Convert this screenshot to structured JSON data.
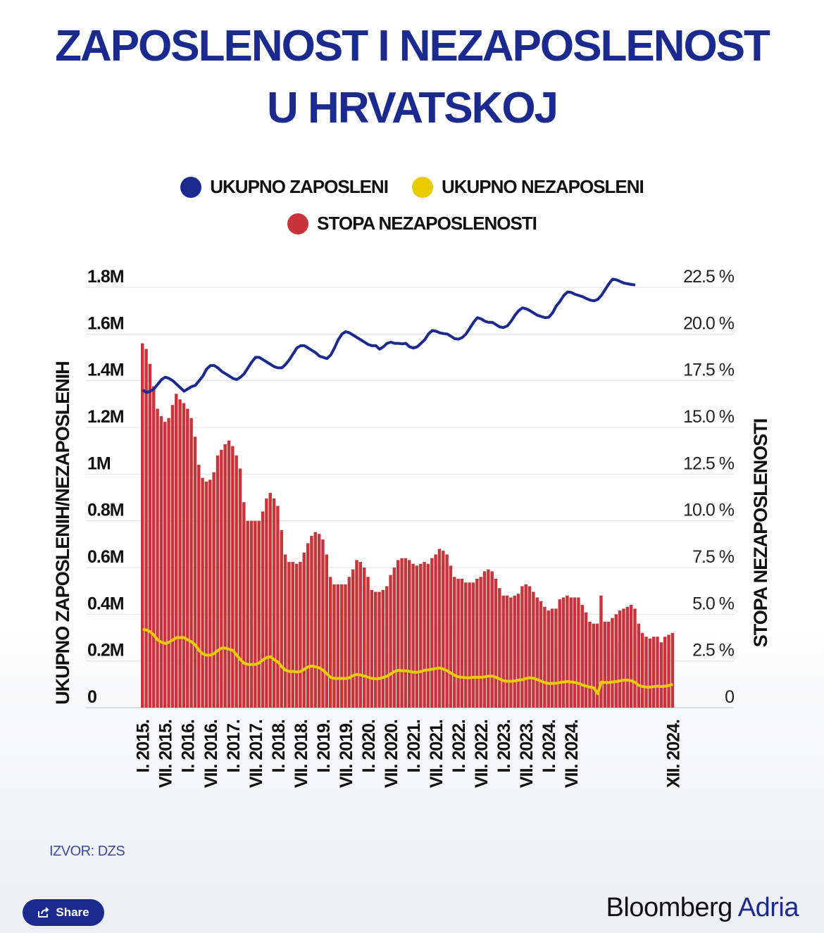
{
  "title": {
    "line1": "ZAPOSLENOST I NEZAPOSLENOST",
    "line2": "U HRVATSKOJ"
  },
  "legend": [
    {
      "label": "UKUPNO ZAPOSLENI",
      "color": "#1a2a8f"
    },
    {
      "label": "UKUPNO NEZAPOSLENI",
      "color": "#e8cc00"
    },
    {
      "label": "STOPA NEZAPOSLENOSTI",
      "color": "#c9343a"
    }
  ],
  "source": "IZVOR: DZS",
  "share_label": "Share",
  "brand": {
    "part1": "Bloomberg",
    "part2": "Adria"
  },
  "chart_data": {
    "type": "bar+line",
    "ylabel_left": "UKUPNO ZAPOSLENIH/NEZAPOSLENIH",
    "ylabel_right": "STOPA NEZAPOSLENOSTI",
    "left_ticks": [
      "0",
      "0.2M",
      "0.4M",
      "0.6M",
      "0.8M",
      "1M",
      "1.2M",
      "1.4M",
      "1.6M",
      "1.8M"
    ],
    "right_ticks": [
      "0",
      "2.5 %",
      "5.0 %",
      "7.5 %",
      "10.0 %",
      "12.5 %",
      "15.0 %",
      "17.5 %",
      "20.0 %",
      "22.5 %"
    ],
    "ylim_left": [
      0,
      1800000
    ],
    "ylim_right": [
      0,
      22.5
    ],
    "x_tick_labels": [
      "I. 2015.",
      "VII. 2015.",
      "I. 2016.",
      "VII. 2016.",
      "I. 2017.",
      "VII. 2017.",
      "I. 2018.",
      "VII. 2018.",
      "I. 2019.",
      "VII. 2019.",
      "I. 2020.",
      "VII. 2020.",
      "I. 2021.",
      "VII. 2021.",
      "I. 2022.",
      "VII. 2022.",
      "I. 2023.",
      "VII. 2023.",
      "I. 2024.",
      "VII. 2024.",
      "XII. 2024."
    ],
    "period_start": "I. 2015.",
    "period_end": "XII. 2024.",
    "series": [
      {
        "name": "STOPA NEZAPOSLENOSTI",
        "kind": "bar",
        "axis": "right",
        "unit": "%",
        "values": [
          19.5,
          19.2,
          18.4,
          17.2,
          16.0,
          15.6,
          15.3,
          15.5,
          16.2,
          16.8,
          16.5,
          16.3,
          16.0,
          15.5,
          14.5,
          13.0,
          12.3,
          12.1,
          12.2,
          12.6,
          13.5,
          13.8,
          14.1,
          14.3,
          14.0,
          13.5,
          12.8,
          11.0,
          10.0,
          10.0,
          10.0,
          10.0,
          10.5,
          11.2,
          11.5,
          11.2,
          10.8,
          9.5,
          8.2,
          7.8,
          7.8,
          7.7,
          7.8,
          8.3,
          8.8,
          9.2,
          9.4,
          9.3,
          9.0,
          8.2,
          7.0,
          6.6,
          6.6,
          6.6,
          6.6,
          7.0,
          7.4,
          7.9,
          7.8,
          7.5,
          7.0,
          6.3,
          6.2,
          6.2,
          6.3,
          6.5,
          7.1,
          7.5,
          7.9,
          8.0,
          8.0,
          7.9,
          7.7,
          7.6,
          7.7,
          7.8,
          7.7,
          8.0,
          8.2,
          8.5,
          8.4,
          8.2,
          7.6,
          7.0,
          6.9,
          6.9,
          6.7,
          6.7,
          6.7,
          6.9,
          7.0,
          7.3,
          7.4,
          7.3,
          6.9,
          6.4,
          6.0,
          6.0,
          5.9,
          6.0,
          6.1,
          6.5,
          6.6,
          6.5,
          6.2,
          5.9,
          5.7,
          5.4,
          5.2,
          5.3,
          5.3,
          5.8,
          5.9,
          6.0,
          5.9,
          5.9,
          5.9,
          5.5,
          5.1,
          4.6,
          4.5,
          4.5,
          6.0,
          4.6,
          4.6,
          4.8,
          5.0,
          5.2,
          5.3,
          5.4,
          5.5,
          5.3,
          4.5,
          4.0,
          3.8,
          3.7,
          3.8,
          3.8,
          3.5,
          3.8,
          3.9,
          4.0
        ]
      },
      {
        "name": "UKUPNO ZAPOSLENI",
        "kind": "line",
        "axis": "left",
        "unit": "people",
        "values": [
          1360000,
          1350000,
          1355000,
          1365000,
          1385000,
          1405000,
          1415000,
          1410000,
          1400000,
          1385000,
          1370000,
          1355000,
          1365000,
          1375000,
          1380000,
          1400000,
          1420000,
          1450000,
          1465000,
          1465000,
          1455000,
          1440000,
          1430000,
          1420000,
          1410000,
          1405000,
          1415000,
          1430000,
          1455000,
          1480000,
          1500000,
          1500000,
          1490000,
          1480000,
          1470000,
          1460000,
          1455000,
          1455000,
          1470000,
          1490000,
          1515000,
          1540000,
          1550000,
          1550000,
          1540000,
          1530000,
          1520000,
          1505000,
          1500000,
          1495000,
          1510000,
          1540000,
          1575000,
          1600000,
          1610000,
          1605000,
          1595000,
          1585000,
          1575000,
          1565000,
          1555000,
          1550000,
          1550000,
          1535000,
          1545000,
          1560000,
          1565000,
          1560000,
          1560000,
          1558000,
          1560000,
          1545000,
          1540000,
          1545000,
          1560000,
          1575000,
          1600000,
          1615000,
          1612000,
          1605000,
          1602000,
          1600000,
          1590000,
          1580000,
          1578000,
          1585000,
          1600000,
          1625000,
          1650000,
          1670000,
          1665000,
          1655000,
          1650000,
          1650000,
          1640000,
          1630000,
          1628000,
          1635000,
          1655000,
          1680000,
          1700000,
          1712000,
          1708000,
          1700000,
          1690000,
          1680000,
          1675000,
          1670000,
          1672000,
          1690000,
          1720000,
          1740000,
          1765000,
          1780000,
          1778000,
          1770000,
          1765000,
          1760000,
          1752000,
          1745000,
          1742000,
          1748000,
          1765000,
          1790000,
          1815000,
          1835000,
          1832000,
          1825000,
          1818000,
          1815000,
          1812000,
          1810000
        ]
      },
      {
        "name": "UKUPNO NEZAPOSLENI",
        "kind": "line",
        "axis": "left",
        "unit": "people",
        "values": [
          335000,
          333000,
          325000,
          310000,
          290000,
          280000,
          275000,
          280000,
          290000,
          300000,
          300000,
          300000,
          290000,
          282000,
          268000,
          245000,
          230000,
          225000,
          225000,
          232000,
          245000,
          255000,
          255000,
          250000,
          245000,
          225000,
          205000,
          190000,
          185000,
          185000,
          185000,
          192000,
          205000,
          215000,
          218000,
          205000,
          195000,
          175000,
          160000,
          155000,
          155000,
          153000,
          155000,
          165000,
          175000,
          178000,
          175000,
          170000,
          160000,
          145000,
          130000,
          125000,
          125000,
          125000,
          125000,
          128000,
          138000,
          142000,
          140000,
          135000,
          130000,
          125000,
          124000,
          125000,
          130000,
          135000,
          145000,
          155000,
          160000,
          158000,
          158000,
          155000,
          152000,
          152000,
          155000,
          160000,
          162000,
          165000,
          168000,
          170000,
          165000,
          158000,
          148000,
          138000,
          132000,
          130000,
          128000,
          128000,
          130000,
          130000,
          130000,
          132000,
          135000,
          135000,
          130000,
          122000,
          115000,
          113000,
          113000,
          115000,
          118000,
          120000,
          125000,
          128000,
          126000,
          120000,
          113000,
          107000,
          103000,
          104000,
          105000,
          108000,
          110000,
          112000,
          110000,
          108000,
          103000,
          97000,
          92000,
          88000,
          85000,
          60000,
          110000,
          108000,
          108000,
          110000,
          112000,
          115000,
          118000,
          118000,
          115000,
          108000,
          95000,
          90000,
          88000,
          88000,
          90000,
          92000,
          90000,
          92000,
          95000,
          100000
        ]
      }
    ]
  }
}
